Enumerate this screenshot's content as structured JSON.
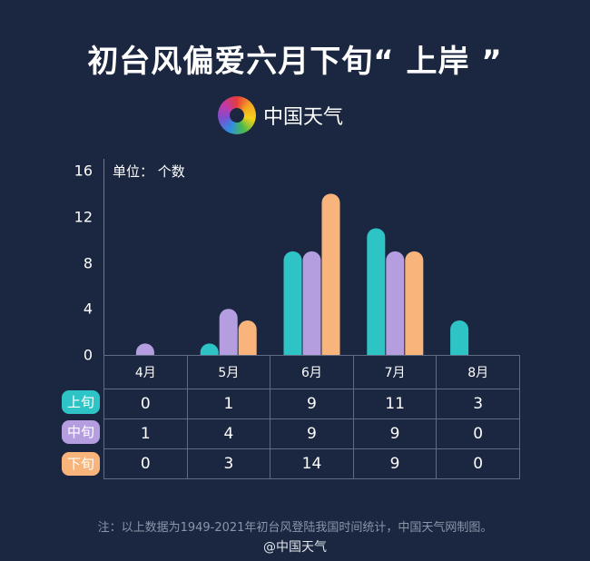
{
  "title": "初台风偏爱六月下旬“ 上岸 ”",
  "logo_text": "中国天气",
  "note": "注：以上数据为1949-2021年初台风登陆我国时间统计，中国天气网制图。",
  "weibo": "@中国天气",
  "chart_data": {
    "type": "bar",
    "unit_label": "单位：  个数",
    "categories": [
      "4月",
      "5月",
      "6月",
      "7月",
      "8月"
    ],
    "ylim": [
      0,
      16
    ],
    "yticks": [
      "0",
      "4",
      "8",
      "12",
      "16"
    ],
    "series": [
      {
        "name": "上旬",
        "color": "#2ec4c6",
        "values": [
          0,
          1,
          9,
          11,
          3
        ]
      },
      {
        "name": "中旬",
        "color": "#b49ee0",
        "values": [
          1,
          4,
          9,
          9,
          0
        ]
      },
      {
        "name": "下旬",
        "color": "#f9b47c",
        "values": [
          0,
          3,
          14,
          9,
          0
        ]
      }
    ]
  }
}
